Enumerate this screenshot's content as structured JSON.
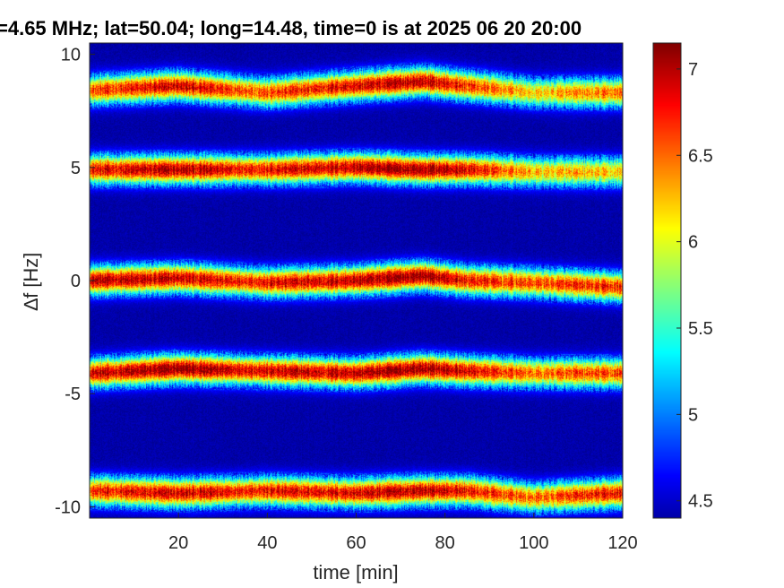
{
  "chart_data": {
    "type": "heatmap",
    "title": "=4.65 MHz;  lat=50.04; long=14.48, time=0 is at 2025 06 20 20:00",
    "xlabel": "time [min]",
    "ylabel": "∆f [Hz]",
    "xlim": [
      0,
      120
    ],
    "ylim": [
      -10.5,
      10.5
    ],
    "x_ticks": [
      20,
      40,
      60,
      80,
      100,
      120
    ],
    "x_tick_labels": [
      "20",
      "40",
      "60",
      "80",
      "100",
      "120"
    ],
    "y_ticks": [
      10,
      5,
      0,
      -5,
      -10
    ],
    "y_tick_labels": [
      "10",
      "5",
      "0",
      "-5",
      "-10"
    ],
    "colorbar": {
      "colormap": "jet",
      "range": [
        4.4,
        7.15
      ],
      "ticks": [
        7,
        6.5,
        6,
        5.5,
        5,
        4.5
      ],
      "tick_labels": [
        "7",
        "6.5",
        "6",
        "5.5",
        "5",
        "4.5"
      ]
    },
    "background_color": "#00008f",
    "bands": [
      {
        "name": "band +8.5 Hz",
        "x": [
          0,
          20,
          40,
          60,
          75,
          85,
          100,
          120
        ],
        "center_hz": [
          8.4,
          8.6,
          8.3,
          8.6,
          8.8,
          8.6,
          8.3,
          8.3
        ],
        "peak_level": [
          6.6,
          6.9,
          6.6,
          6.9,
          7.0,
          6.7,
          6.2,
          6.5
        ]
      },
      {
        "name": "band +5 Hz",
        "x": [
          0,
          20,
          40,
          60,
          75,
          85,
          100,
          120
        ],
        "center_hz": [
          4.9,
          4.9,
          4.9,
          5.0,
          4.9,
          4.9,
          4.8,
          4.8
        ],
        "peak_level": [
          6.8,
          7.0,
          6.8,
          7.0,
          7.1,
          6.9,
          6.3,
          6.2
        ]
      },
      {
        "name": "band 0 Hz",
        "x": [
          0,
          20,
          40,
          60,
          75,
          85,
          100,
          120
        ],
        "center_hz": [
          0.0,
          0.1,
          -0.1,
          0.0,
          0.2,
          0.0,
          -0.1,
          -0.3
        ],
        "peak_level": [
          7.0,
          6.9,
          6.8,
          7.0,
          7.1,
          6.8,
          6.6,
          6.7
        ]
      },
      {
        "name": "band -4 Hz",
        "x": [
          0,
          20,
          40,
          60,
          75,
          85,
          100,
          120
        ],
        "center_hz": [
          -4.1,
          -3.9,
          -4.0,
          -4.1,
          -3.9,
          -4.0,
          -4.1,
          -4.1
        ],
        "peak_level": [
          6.9,
          7.1,
          6.9,
          7.0,
          7.1,
          6.9,
          6.5,
          6.6
        ]
      },
      {
        "name": "band -9.5 Hz",
        "x": [
          0,
          20,
          40,
          60,
          75,
          85,
          100,
          120
        ],
        "center_hz": [
          -9.3,
          -9.4,
          -9.3,
          -9.4,
          -9.3,
          -9.3,
          -9.6,
          -9.4
        ],
        "peak_level": [
          6.7,
          6.9,
          6.8,
          6.9,
          7.0,
          6.8,
          6.5,
          6.8
        ]
      }
    ]
  }
}
